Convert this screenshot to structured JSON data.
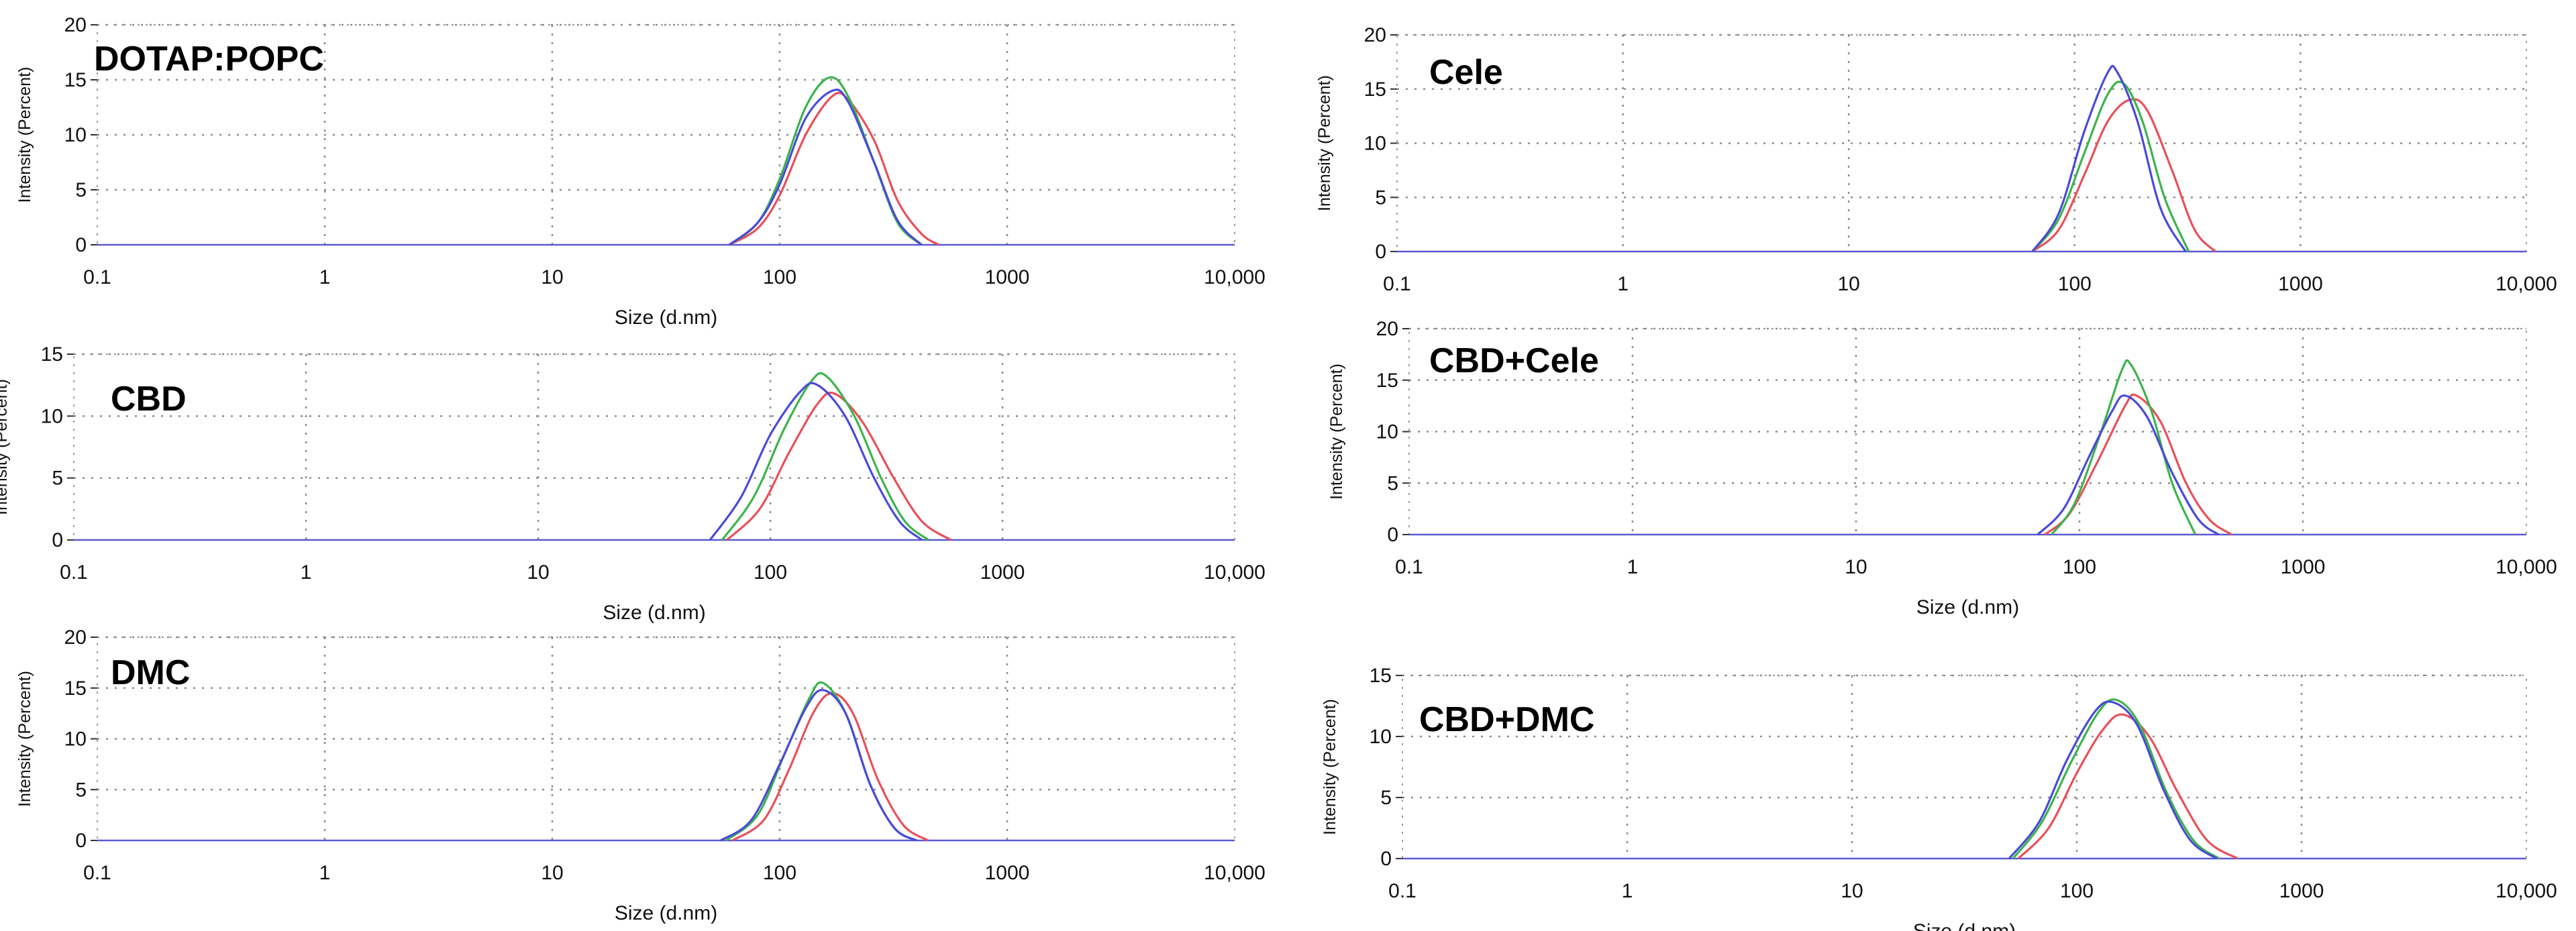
{
  "figure": {
    "panels": [
      {
        "id": "dotap-popc",
        "label": "DOTAP:POPC"
      },
      {
        "id": "cele",
        "label": "Cele"
      },
      {
        "id": "cbd",
        "label": "CBD"
      },
      {
        "id": "cbd-cele",
        "label": "CBD+Cele"
      },
      {
        "id": "dmc",
        "label": "DMC"
      },
      {
        "id": "cbd-dmc",
        "label": "CBD+DMC"
      }
    ]
  },
  "chart_data": [
    {
      "panel": "DOTAP:POPC",
      "type": "line",
      "title": "",
      "xlabel": "Size (d.nm)",
      "ylabel": "Intensity (Percent)",
      "xscale": "log",
      "xlim": [
        0.1,
        10000
      ],
      "ylim": [
        0,
        20
      ],
      "xticks": [
        "0.1",
        "1",
        "10",
        "100",
        "1000",
        "10,000"
      ],
      "yticks": [
        "0",
        "5",
        "10",
        "15",
        "20"
      ],
      "grid": true,
      "series": [
        {
          "color": "#e8505a",
          "x": [
            60,
            80,
            100,
            130,
            170,
            200,
            260,
            330,
            420,
            500
          ],
          "y": [
            0,
            1.5,
            4.5,
            10,
            13.5,
            13.2,
            9.5,
            4,
            1,
            0
          ]
        },
        {
          "color": "#3cb44b",
          "x": [
            60,
            80,
            100,
            130,
            165,
            200,
            260,
            330,
            420
          ],
          "y": [
            0,
            2,
            6,
            12.5,
            15.2,
            13.5,
            7.5,
            2,
            0
          ]
        },
        {
          "color": "#4a4ad8",
          "x": [
            60,
            80,
            100,
            130,
            170,
            200,
            260,
            330,
            420
          ],
          "y": [
            0,
            2,
            5.5,
            11.5,
            14,
            13,
            7.5,
            2.2,
            0
          ]
        }
      ]
    },
    {
      "panel": "Cele",
      "type": "line",
      "title": "",
      "xlabel": "",
      "ylabel": "Intensity (Percent)",
      "xscale": "log",
      "xlim": [
        0.1,
        10000
      ],
      "ylim": [
        0,
        20
      ],
      "xticks": [
        "0.1",
        "1",
        "10",
        "100",
        "1000",
        "10,000"
      ],
      "yticks": [
        "0",
        "5",
        "10",
        "15",
        "20"
      ],
      "grid": true,
      "series": [
        {
          "color": "#e8505a",
          "x": [
            65,
            85,
            110,
            140,
            175,
            210,
            270,
            340,
            420
          ],
          "y": [
            0,
            2,
            7,
            12,
            14,
            13,
            7.5,
            2,
            0
          ]
        },
        {
          "color": "#3cb44b",
          "x": [
            65,
            85,
            110,
            140,
            165,
            200,
            250,
            320
          ],
          "y": [
            0,
            3,
            9,
            14.5,
            15.5,
            12,
            5,
            0
          ]
        },
        {
          "color": "#4a4ad8",
          "x": [
            65,
            85,
            110,
            140,
            155,
            190,
            240,
            310
          ],
          "y": [
            0,
            3.5,
            11,
            16.5,
            16.5,
            12,
            4,
            0
          ]
        }
      ]
    },
    {
      "panel": "CBD",
      "type": "line",
      "title": "",
      "xlabel": "Size (d.nm)",
      "ylabel": "Intensity (Percent)",
      "xscale": "log",
      "xlim": [
        0.1,
        10000
      ],
      "ylim": [
        0,
        15
      ],
      "xticks": [
        "0.1",
        "1",
        "10",
        "100",
        "1000",
        "10,000"
      ],
      "yticks": [
        "0",
        "5",
        "10",
        "15"
      ],
      "grid": true,
      "series": [
        {
          "color": "#e8505a",
          "x": [
            65,
            90,
            120,
            160,
            190,
            250,
            340,
            450,
            600
          ],
          "y": [
            0,
            2.5,
            7,
            11,
            11.8,
            9.5,
            5,
            1.5,
            0
          ]
        },
        {
          "color": "#3cb44b",
          "x": [
            62,
            85,
            115,
            150,
            175,
            230,
            300,
            380,
            480
          ],
          "y": [
            0,
            3.5,
            9,
            12.8,
            13.2,
            10,
            5,
            1.5,
            0
          ]
        },
        {
          "color": "#4a4ad8",
          "x": [
            55,
            75,
            100,
            135,
            160,
            210,
            280,
            360,
            450
          ],
          "y": [
            0,
            3.5,
            8.5,
            12,
            12.5,
            10,
            5,
            1.5,
            0
          ]
        }
      ]
    },
    {
      "panel": "CBD+Cele",
      "type": "line",
      "title": "",
      "xlabel": "Size (d.nm)",
      "ylabel": "Intensity (Percent)",
      "xscale": "log",
      "xlim": [
        0.1,
        10000
      ],
      "ylim": [
        0,
        20
      ],
      "xticks": [
        "0.1",
        "1",
        "10",
        "100",
        "1000",
        "10,000"
      ],
      "yticks": [
        "0",
        "5",
        "10",
        "15",
        "20"
      ],
      "grid": true,
      "series": [
        {
          "color": "#e8505a",
          "x": [
            70,
            90,
            120,
            160,
            180,
            230,
            300,
            380,
            480
          ],
          "y": [
            0,
            2,
            7,
            12.5,
            13.5,
            11,
            5,
            1.5,
            0
          ]
        },
        {
          "color": "#3cb44b",
          "x": [
            75,
            95,
            125,
            155,
            170,
            210,
            260,
            330
          ],
          "y": [
            0,
            3,
            10,
            16,
            16.5,
            12,
            5,
            0
          ]
        },
        {
          "color": "#4a4ad8",
          "x": [
            65,
            85,
            110,
            140,
            160,
            200,
            260,
            340,
            420
          ],
          "y": [
            0,
            2.5,
            7.5,
            12,
            13.5,
            11.5,
            6,
            1.5,
            0
          ]
        }
      ]
    },
    {
      "panel": "DMC",
      "type": "line",
      "title": "",
      "xlabel": "Size (d.nm)",
      "ylabel": "Intensity (Percent)",
      "xscale": "log",
      "xlim": [
        0.1,
        10000
      ],
      "ylim": [
        0,
        20
      ],
      "xticks": [
        "0.1",
        "1",
        "10",
        "100",
        "1000",
        "10,000"
      ],
      "yticks": [
        "0",
        "5",
        "10",
        "15",
        "20"
      ],
      "grid": true,
      "series": [
        {
          "color": "#e8505a",
          "x": [
            62,
            85,
            110,
            140,
            170,
            210,
            270,
            350,
            450
          ],
          "y": [
            0,
            2,
            7,
            12.5,
            14.5,
            12.5,
            6,
            1.5,
            0
          ]
        },
        {
          "color": "#3cb44b",
          "x": [
            58,
            80,
            105,
            135,
            155,
            195,
            250,
            320,
            400
          ],
          "y": [
            0,
            2.5,
            8.5,
            14,
            15.5,
            12.5,
            5.5,
            1.2,
            0
          ]
        },
        {
          "color": "#4a4ad8",
          "x": [
            55,
            75,
            100,
            130,
            155,
            195,
            250,
            320,
            400
          ],
          "y": [
            0,
            2,
            7.5,
            13,
            14.8,
            12.5,
            5.5,
            1.2,
            0
          ]
        }
      ]
    },
    {
      "panel": "CBD+DMC",
      "type": "line",
      "title": "",
      "xlabel": "Size (d.nm)",
      "ylabel": "Intensity (Percent)",
      "xscale": "log",
      "xlim": [
        0.1,
        10000
      ],
      "ylim": [
        0,
        15
      ],
      "xticks": [
        "0.1",
        "1",
        "10",
        "100",
        "1000",
        "10,000"
      ],
      "yticks": [
        "0",
        "5",
        "10",
        "15"
      ],
      "grid": true,
      "series": [
        {
          "color": "#e8505a",
          "x": [
            55,
            75,
            100,
            130,
            160,
            210,
            280,
            380,
            520
          ],
          "y": [
            0,
            2.5,
            7,
            10.5,
            11.8,
            10,
            5.5,
            1.5,
            0
          ]
        },
        {
          "color": "#3cb44b",
          "x": [
            52,
            70,
            95,
            125,
            150,
            190,
            250,
            330,
            430
          ],
          "y": [
            0,
            3,
            8,
            12,
            13,
            11,
            5.5,
            1.5,
            0
          ]
        },
        {
          "color": "#4a4ad8",
          "x": [
            50,
            68,
            90,
            120,
            145,
            185,
            245,
            320,
            420
          ],
          "y": [
            0,
            3,
            8,
            12,
            12.8,
            11,
            5.5,
            1.5,
            0
          ]
        }
      ]
    }
  ]
}
